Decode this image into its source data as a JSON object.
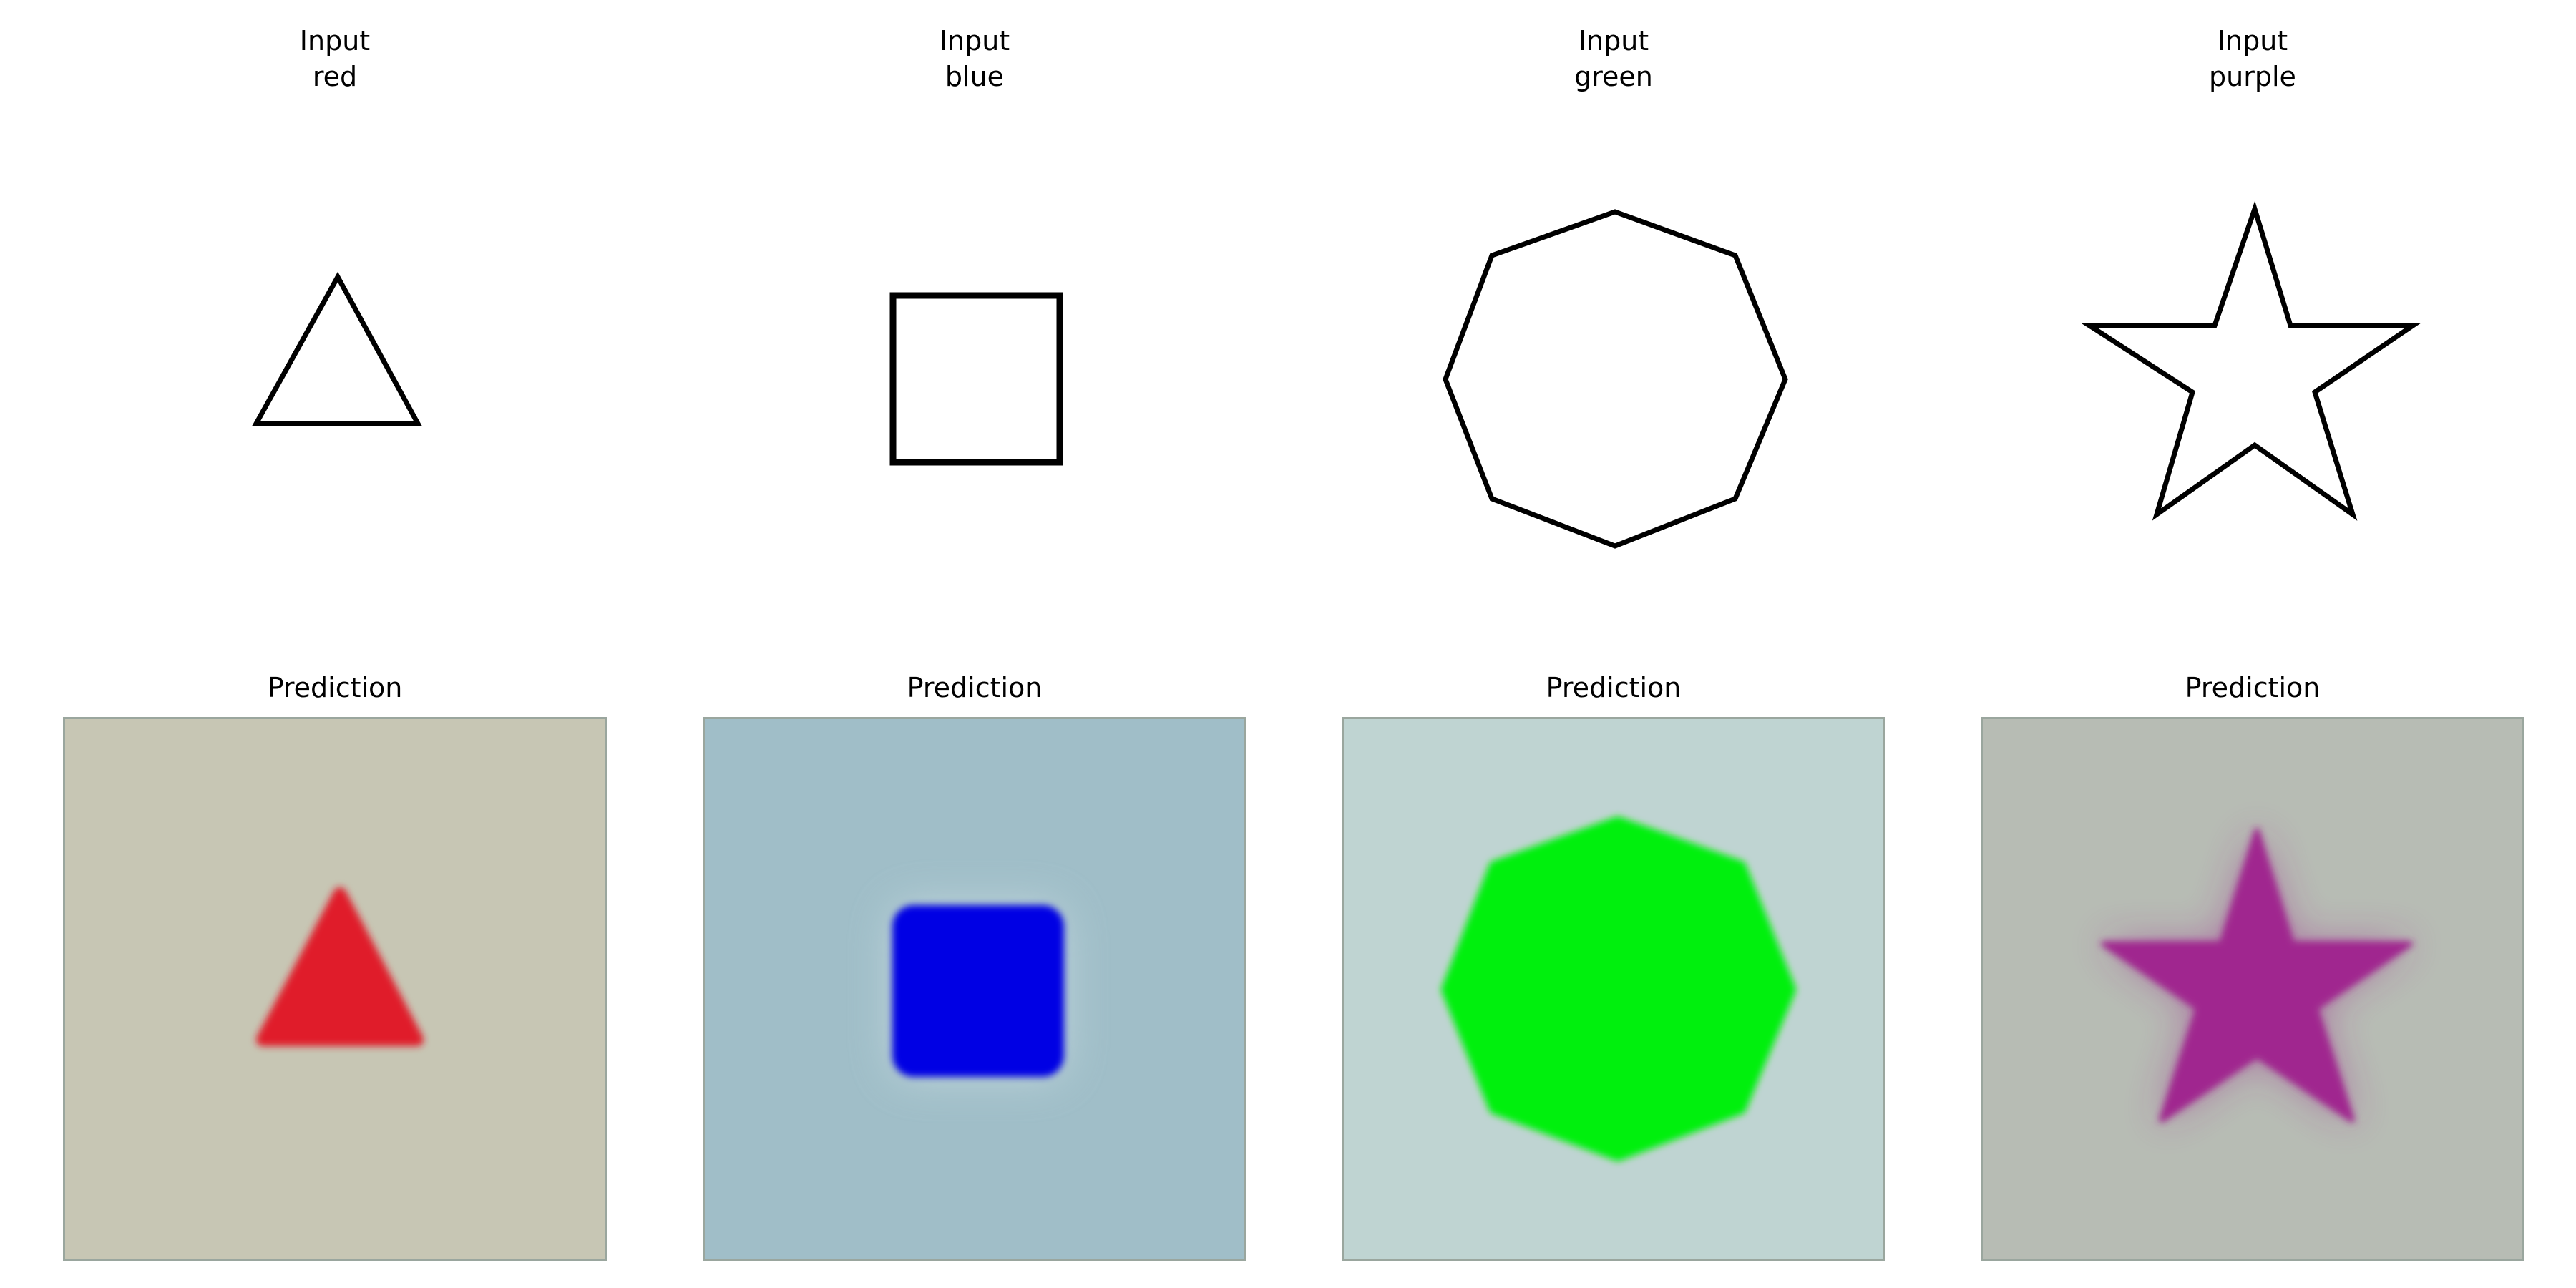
{
  "panels": [
    {
      "input_title_line1": "Input",
      "input_title_line2": "red",
      "prediction_title": "Prediction",
      "shape": "triangle-icon",
      "fill_color": "#e01f2a",
      "background_color": "#c7c6b4"
    },
    {
      "input_title_line1": "Input",
      "input_title_line2": "blue",
      "prediction_title": "Prediction",
      "shape": "square-icon",
      "fill_color": "#0404e4",
      "background_color": "#a0bec8"
    },
    {
      "input_title_line1": "Input",
      "input_title_line2": "green",
      "prediction_title": "Prediction",
      "shape": "octagon-icon",
      "fill_color": "#05f010",
      "background_color": "#bfd4d2"
    },
    {
      "input_title_line1": "Input",
      "input_title_line2": "purple",
      "prediction_title": "Prediction",
      "shape": "star-icon",
      "fill_color": "#a0258f",
      "background_color": "#b7bcb4"
    }
  ]
}
